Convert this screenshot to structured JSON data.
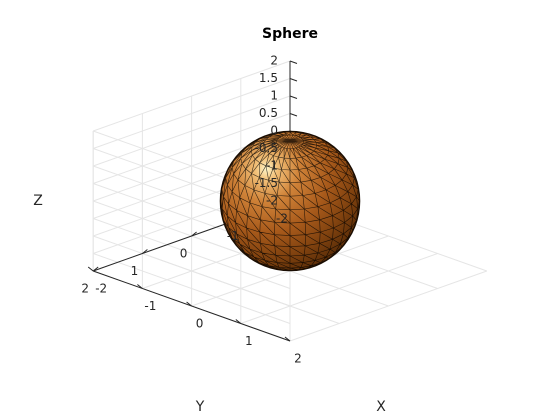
{
  "chart_data": {
    "type": "surface",
    "title": "Sphere",
    "xlabel": "X",
    "ylabel": "Y",
    "zlabel": "Z",
    "xlim": [
      -2,
      2
    ],
    "ylim": [
      -2,
      2
    ],
    "zlim": [
      -2,
      2
    ],
    "x_ticks": [
      "-2",
      "-1",
      "0",
      "1",
      "2"
    ],
    "y_ticks": [
      "-2",
      "-1",
      "0",
      "1",
      "2"
    ],
    "z_ticks": [
      "-2",
      "-1.5",
      "-1",
      "-0.5",
      "0",
      "0.5",
      "1",
      "1.5",
      "2"
    ],
    "grid": true,
    "box": true,
    "surface": {
      "shape": "sphere",
      "center": [
        0,
        0,
        0
      ],
      "radius": 1,
      "mesh": "triangulated",
      "face_color": "#b5651d",
      "edge_color": "#000000",
      "lighting": "gouraud"
    }
  }
}
